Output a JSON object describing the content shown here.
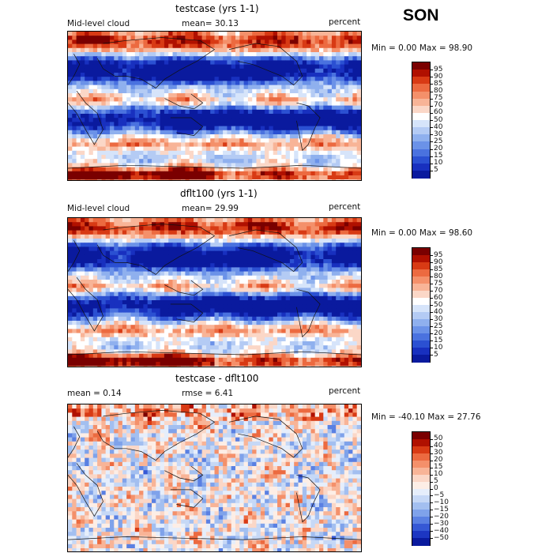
{
  "season": "SON",
  "panels": [
    {
      "title": "testcase (yrs 1-1)",
      "left_label": "Mid-level cloud",
      "center_label": "mean=  30.13",
      "right_label": "percent",
      "min_max": "Min =    0.00 Max =   98.90",
      "colorbar": {
        "levels": [
          "95",
          "90",
          "85",
          "80",
          "75",
          "70",
          "60",
          "50",
          "40",
          "30",
          "25",
          "20",
          "15",
          "10",
          "5"
        ],
        "colors": [
          "#7a0000",
          "#b01000",
          "#d83a14",
          "#ec6a40",
          "#f4906a",
          "#f8b497",
          "#fbd7c7",
          "#ffffff",
          "#d6e4fa",
          "#b4cbf4",
          "#8fb0ee",
          "#6b92e8",
          "#4a72df",
          "#2b50d2",
          "#1830bf",
          "#0a1a9e"
        ]
      },
      "field": "cloud"
    },
    {
      "title": "dflt100 (yrs 1-1)",
      "left_label": "Mid-level cloud",
      "center_label": "mean=  29.99",
      "right_label": "percent",
      "min_max": "Min =    0.00 Max =   98.60",
      "colorbar": {
        "levels": [
          "95",
          "90",
          "85",
          "80",
          "75",
          "70",
          "60",
          "50",
          "40",
          "30",
          "25",
          "20",
          "15",
          "10",
          "5"
        ],
        "colors": [
          "#7a0000",
          "#b01000",
          "#d83a14",
          "#ec6a40",
          "#f4906a",
          "#f8b497",
          "#fbd7c7",
          "#ffffff",
          "#d6e4fa",
          "#b4cbf4",
          "#8fb0ee",
          "#6b92e8",
          "#4a72df",
          "#2b50d2",
          "#1830bf",
          "#0a1a9e"
        ]
      },
      "field": "cloud"
    },
    {
      "title": "testcase - dflt100",
      "left_label": "mean =    0.14",
      "center_label": "rmse =    6.41",
      "right_label": "percent",
      "min_max": "Min = -40.10 Max =   27.76",
      "colorbar": {
        "levels": [
          "50",
          "40",
          "30",
          "20",
          "15",
          "10",
          "5",
          "0",
          "−5",
          "−10",
          "−15",
          "−20",
          "−30",
          "−40",
          "−50"
        ],
        "colors": [
          "#7a0000",
          "#b01000",
          "#d83a14",
          "#ec6a40",
          "#f4906a",
          "#f8b497",
          "#fbd7c7",
          "#fdeee6",
          "#e6eefb",
          "#c6d8f6",
          "#a3bff0",
          "#7fa2ea",
          "#5a80e2",
          "#3558d5",
          "#1c36c2",
          "#0a1a9e"
        ]
      },
      "field": "diff"
    }
  ]
}
